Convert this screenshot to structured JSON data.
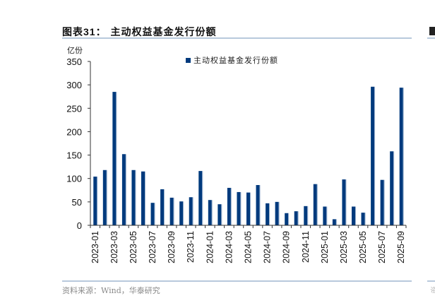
{
  "figure": {
    "title_prefix": "图表",
    "title_number": "31",
    "title_sep": "：",
    "title_text": "主动权益基金发行份额",
    "unit": "亿份",
    "source": "资料来源：Wind，华泰研究"
  },
  "colors": {
    "bar": "#003a7d",
    "rule": "#b8c9dc",
    "axis": "#333333"
  },
  "chart_data": {
    "type": "bar",
    "title": "主动权益基金发行份额",
    "xlabel": "",
    "ylabel": "亿份",
    "ylim": [
      0,
      350
    ],
    "yticks": [
      0,
      50,
      100,
      150,
      200,
      250,
      300,
      350
    ],
    "grid": false,
    "legend_position": "top-center",
    "series": [
      {
        "name": "主动权益基金发行份额",
        "values": [
          104,
          118,
          285,
          152,
          118,
          115,
          48,
          77,
          59,
          51,
          60,
          116,
          54,
          45,
          80,
          71,
          70,
          86,
          47,
          50,
          26,
          30,
          41,
          88,
          40,
          13,
          98,
          40,
          27,
          296,
          97,
          158,
          294
        ]
      }
    ],
    "categories": [
      "2023-01",
      "2023-02",
      "2023-03",
      "2023-04",
      "2023-05",
      "2023-06",
      "2023-07",
      "2023-08",
      "2023-09",
      "2023-10",
      "2023-11",
      "2023-12",
      "2024-01",
      "2024-02",
      "2024-03",
      "2024-04",
      "2024-05",
      "2024-06",
      "2024-07",
      "2024-08",
      "2024-09",
      "2024-10",
      "2024-11",
      "2024-12",
      "2025-01",
      "2025-02",
      "2025-03",
      "2025-04",
      "2025-05",
      "2025-06",
      "2025-07",
      "2025-08",
      "2025-09"
    ],
    "xtick_labels_shown": [
      "2023-01",
      "2023-03",
      "2023-05",
      "2023-07",
      "2023-09",
      "2023-11",
      "2024-01",
      "2024-03",
      "2024-05",
      "2024-07",
      "2024-09",
      "2024-11",
      "2025-01",
      "2025-03",
      "2025-05",
      "2025-07",
      "2025-09"
    ]
  }
}
